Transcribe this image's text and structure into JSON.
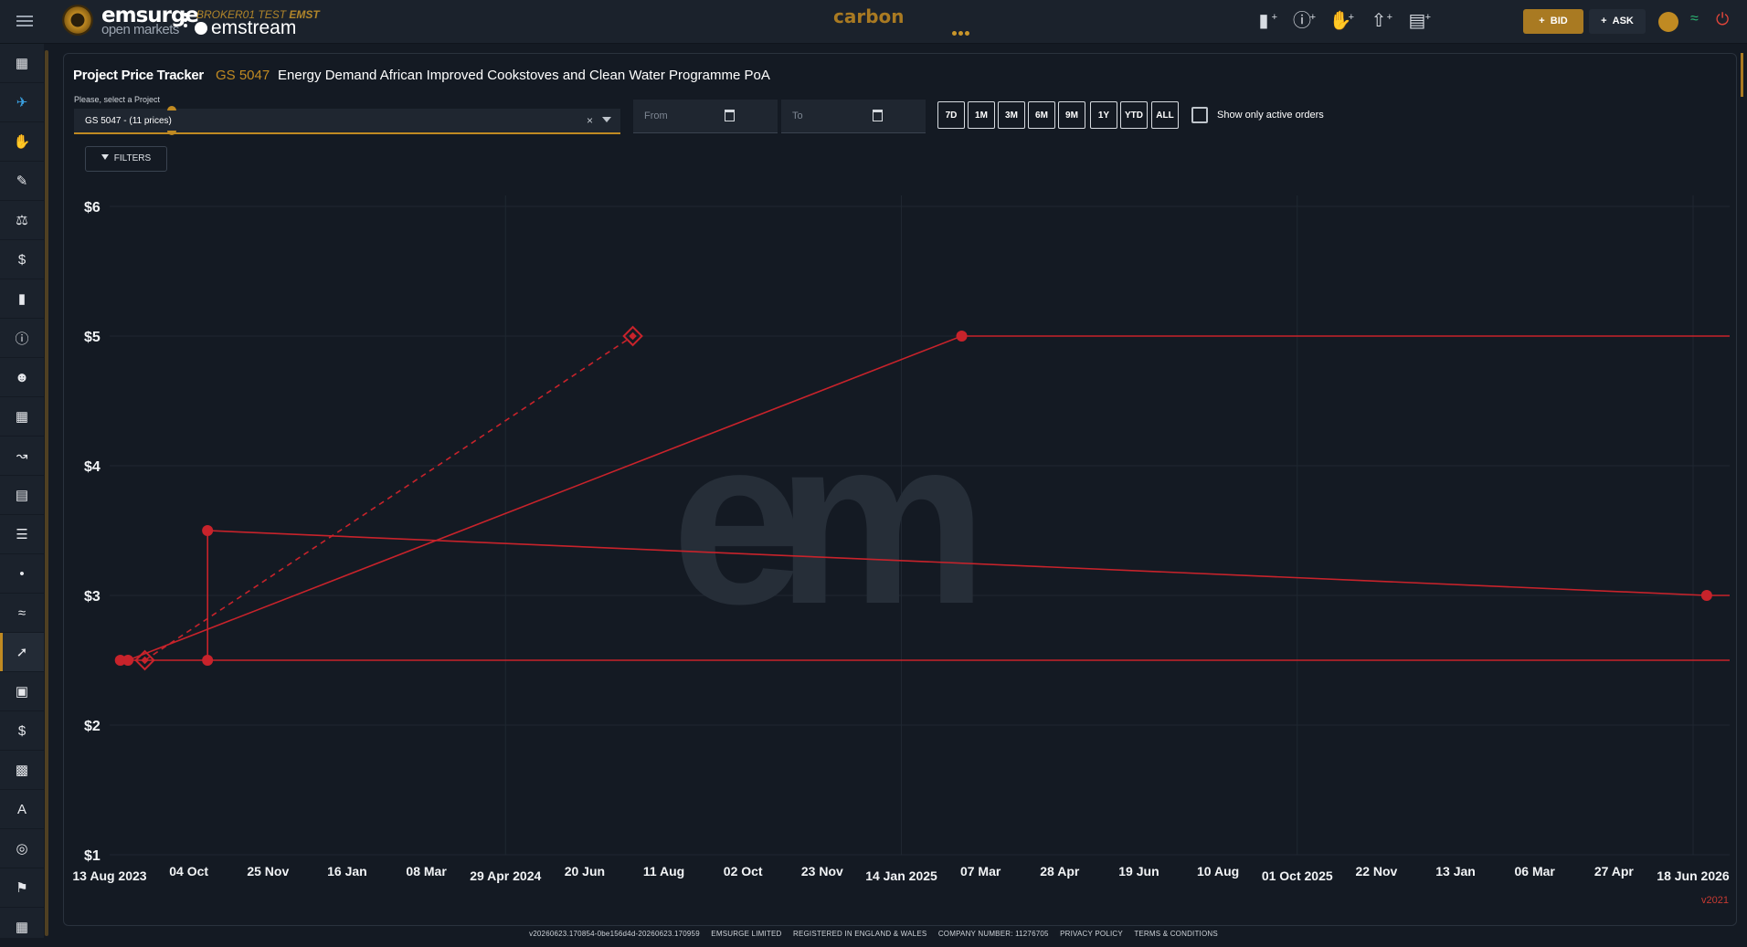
{
  "header": {
    "brand_name": "emsurge",
    "brand_sub": "open markets",
    "broker_prefix": "BROKER01 TEST",
    "broker_code": "EMST",
    "product": "emstream",
    "market": "carbon",
    "bid_label": "BID",
    "ask_label": "ASK"
  },
  "page": {
    "title": "Project Price Tracker",
    "project_code": "GS 5047",
    "project_name": "Energy Demand African Improved Cookstoves and Clean Water Programme PoA",
    "select_label": "Please, select a Project",
    "select_value": "GS 5047 - (11 prices)",
    "from_placeholder": "From",
    "to_placeholder": "To",
    "ranges": [
      "7D",
      "1M",
      "3M",
      "6M",
      "9M",
      "1Y",
      "YTD",
      "ALL"
    ],
    "active_only_label": "Show only active orders",
    "filters_label": "FILTERS",
    "version": "v2021"
  },
  "footer": {
    "build": "v20260623.170854-0be156d4d-20260623.170959",
    "company": "EMSURGE LIMITED",
    "registered": "REGISTERED IN ENGLAND & WALES",
    "company_number": "COMPANY NUMBER: 11276705",
    "privacy": "PRIVACY POLICY",
    "terms": "TERMS & CONDITIONS"
  },
  "sidebar_icons": [
    "dashboard-icon",
    "plane-icon",
    "handshake-icon",
    "new-order-icon",
    "balance-icon",
    "dollar-swap-icon",
    "tag-icon",
    "info-icon",
    "users-icon",
    "table-icon",
    "analytics-icon",
    "list-icon",
    "list-alt-icon",
    "bubble-icon",
    "multiline-icon",
    "line-chart-icon",
    "briefcase-icon",
    "dollar-icon",
    "bar-chart-icon",
    "translate-icon",
    "globe-icon",
    "flag-icon",
    "grid-icon"
  ],
  "colors": {
    "accent": "#c08a22",
    "series": "#c8232b"
  },
  "chart_data": {
    "type": "line",
    "y_ticks": [
      "$6",
      "$5",
      "$4",
      "$3",
      "$2",
      "$1"
    ],
    "y_values": [
      6,
      5,
      4,
      3,
      2,
      1
    ],
    "ylim": [
      1,
      6
    ],
    "x_ticks": [
      "13 Aug 2023",
      "04 Oct",
      "25 Nov",
      "16 Jan",
      "08 Mar",
      "29 Apr 2024",
      "20 Jun",
      "11 Aug",
      "02 Oct",
      "23 Nov",
      "14 Jan 2025",
      "07 Mar",
      "28 Apr",
      "19 Jun",
      "10 Aug",
      "01 Oct 2025",
      "22 Nov",
      "13 Jan",
      "06 Mar",
      "27 Apr",
      "18 Jun 2026"
    ],
    "xlim": [
      "2023-08-13",
      "2026-07-07"
    ],
    "grid": true,
    "watermark": "em",
    "series": [
      {
        "style": "solid",
        "points": [
          [
            "2023-08-20",
            2.5
          ],
          [
            "2023-10-15",
            2.5
          ],
          [
            "2026-07-07",
            2.5
          ]
        ]
      },
      {
        "style": "solid",
        "points": [
          [
            "2023-10-16",
            2.5
          ],
          [
            "2023-10-16",
            3.5
          ],
          [
            "2026-06-22",
            3.0
          ],
          [
            "2026-07-07",
            3.0
          ]
        ]
      },
      {
        "style": "solid",
        "points": [
          [
            "2023-08-25",
            2.5
          ],
          [
            "2025-02-20",
            5.0
          ],
          [
            "2026-07-07",
            5.0
          ]
        ]
      },
      {
        "style": "dashed",
        "points": [
          [
            "2023-09-05",
            2.5
          ],
          [
            "2024-07-20",
            5.0
          ]
        ]
      }
    ],
    "markers": [
      {
        "x": "2023-08-20",
        "y": 2.5,
        "shape": "dot"
      },
      {
        "x": "2023-08-25",
        "y": 2.5,
        "shape": "dot"
      },
      {
        "x": "2023-09-05",
        "y": 2.5,
        "shape": "handshake"
      },
      {
        "x": "2023-10-16",
        "y": 2.5,
        "shape": "dot"
      },
      {
        "x": "2023-10-16",
        "y": 3.5,
        "shape": "dot"
      },
      {
        "x": "2024-07-20",
        "y": 5.0,
        "shape": "handshake"
      },
      {
        "x": "2025-02-20",
        "y": 5.0,
        "shape": "dot"
      },
      {
        "x": "2026-06-22",
        "y": 3.0,
        "shape": "dot"
      }
    ]
  }
}
